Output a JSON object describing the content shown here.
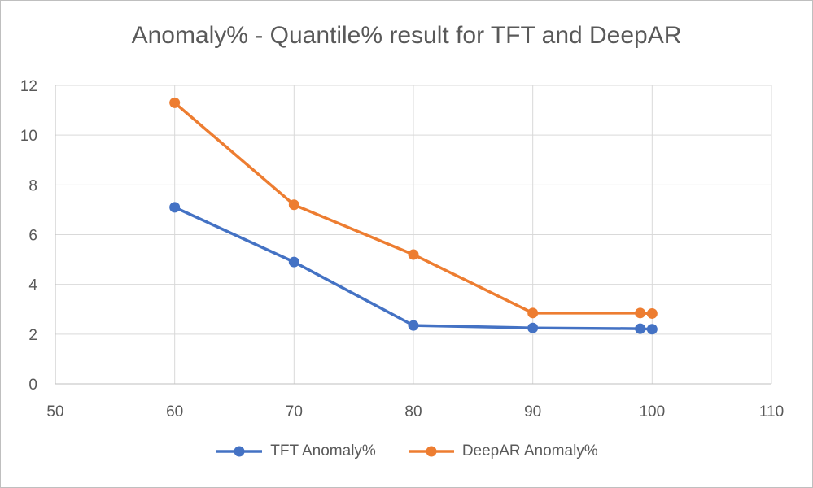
{
  "chart_data": {
    "type": "scatter",
    "title": "Anomaly% - Quantile% result for TFT and DeepAR",
    "xlabel": "",
    "ylabel": "",
    "xlim": [
      50,
      110
    ],
    "ylim": [
      0,
      12
    ],
    "x_ticks": [
      50,
      60,
      70,
      80,
      90,
      100,
      110
    ],
    "y_ticks": [
      0,
      2,
      4,
      6,
      8,
      10,
      12
    ],
    "grid": true,
    "legend_position": "bottom",
    "series": [
      {
        "name": "TFT Anomaly%",
        "color": "#4472C4",
        "x": [
          60,
          70,
          80,
          90,
          99,
          100
        ],
        "y": [
          7.1,
          4.9,
          2.35,
          2.25,
          2.22,
          2.2
        ]
      },
      {
        "name": "DeepAR Anomaly%",
        "color": "#ED7D31",
        "x": [
          60,
          70,
          80,
          90,
          99,
          100
        ],
        "y": [
          11.3,
          7.2,
          5.2,
          2.85,
          2.85,
          2.83
        ]
      }
    ]
  }
}
